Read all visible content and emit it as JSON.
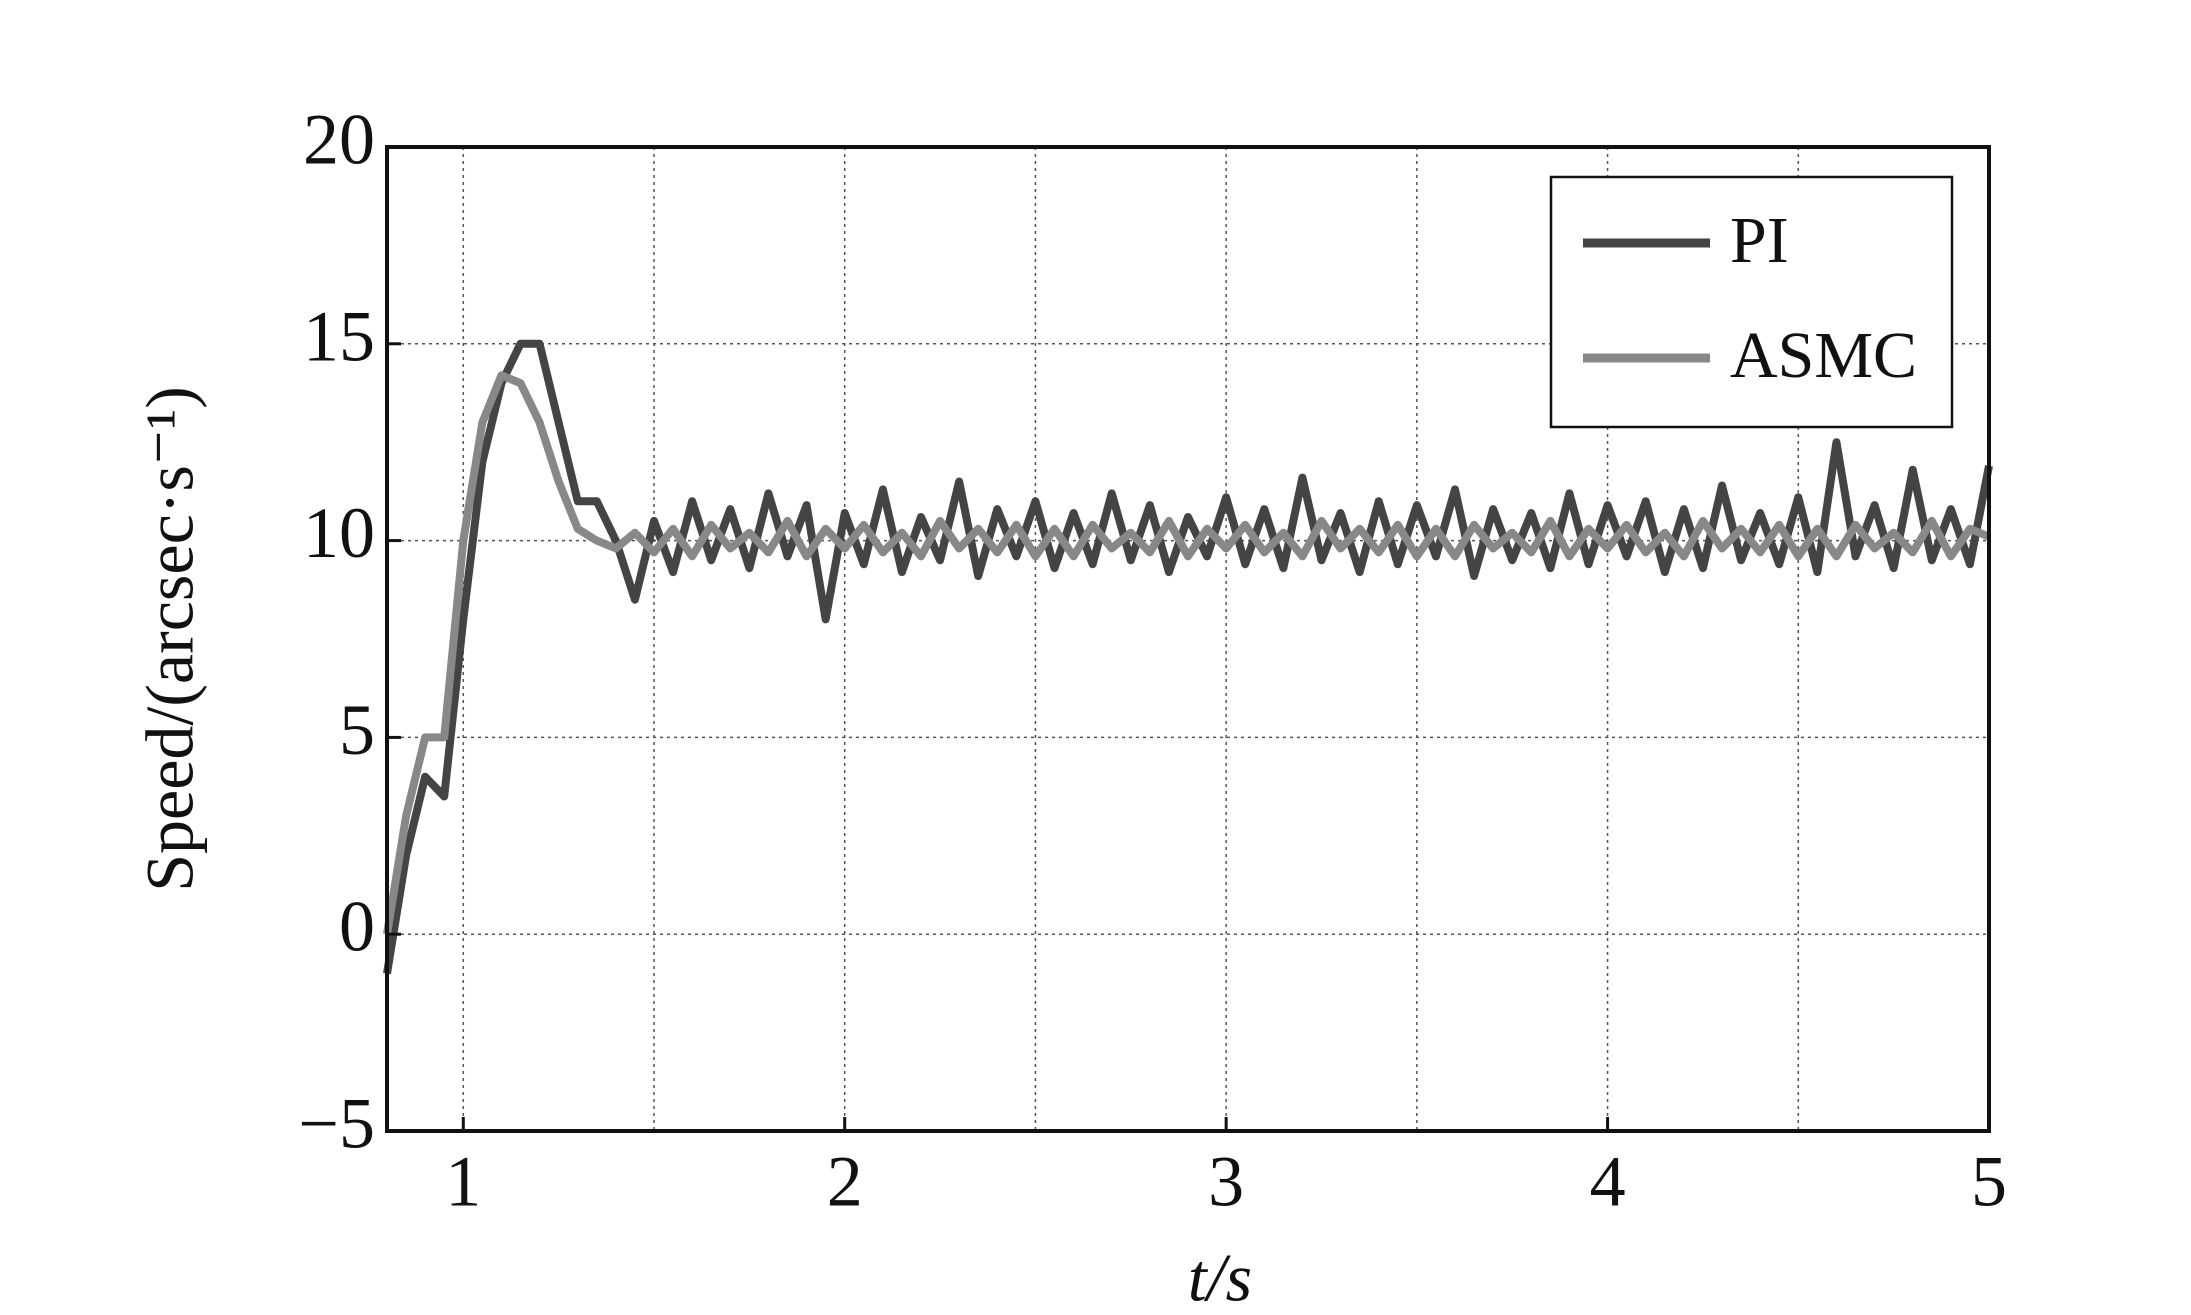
{
  "chart_data": {
    "type": "line",
    "xlabel": "t/s",
    "ylabel": "Speed/(arcsec·s⁻¹)",
    "xlim": [
      0.8,
      5
    ],
    "ylim": [
      -5,
      20
    ],
    "xticks": [
      1,
      2,
      3,
      4,
      5
    ],
    "x_gridlines": [
      1,
      1.5,
      2,
      2.5,
      3,
      3.5,
      4,
      4.5
    ],
    "yticks": [
      {
        "value": -5,
        "label": "−5"
      },
      0,
      5,
      10,
      15,
      20
    ],
    "grid": true,
    "legend": "upper right",
    "x": [
      0.8,
      0.85,
      0.9,
      0.95,
      1,
      1.05,
      1.1,
      1.15,
      1.2,
      1.25,
      1.3,
      1.35,
      1.4,
      1.45,
      1.5,
      1.55,
      1.6,
      1.65,
      1.7,
      1.75,
      1.8,
      1.85,
      1.9,
      1.95,
      2,
      2.05,
      2.1,
      2.15,
      2.2,
      2.25,
      2.3,
      2.35,
      2.4,
      2.45,
      2.5,
      2.55,
      2.6,
      2.65,
      2.7,
      2.75,
      2.8,
      2.85,
      2.9,
      2.95,
      3,
      3.05,
      3.1,
      3.15,
      3.2,
      3.25,
      3.3,
      3.35,
      3.4,
      3.45,
      3.5,
      3.55,
      3.6,
      3.65,
      3.7,
      3.75,
      3.8,
      3.85,
      3.9,
      3.95,
      4,
      4.05,
      4.1,
      4.15,
      4.2,
      4.25,
      4.3,
      4.35,
      4.4,
      4.45,
      4.5,
      4.55,
      4.6,
      4.65,
      4.7,
      4.75,
      4.8,
      4.85,
      4.9,
      4.95,
      5
    ],
    "series": [
      {
        "name": "PI",
        "color": "#444444",
        "values": [
          -1,
          2,
          4,
          3.5,
          8,
          12,
          14,
          15,
          15,
          13,
          11,
          11,
          10,
          8.5,
          10.5,
          9.2,
          11,
          9.5,
          10.8,
          9.3,
          11.2,
          9.6,
          10.9,
          8,
          10.7,
          9.4,
          11.3,
          9.2,
          10.6,
          9.5,
          11.5,
          9.1,
          10.8,
          9.6,
          11,
          9.3,
          10.7,
          9.4,
          11.2,
          9.5,
          10.9,
          9.2,
          10.6,
          9.6,
          11.1,
          9.4,
          10.8,
          9.3,
          11.6,
          9.5,
          10.7,
          9.2,
          11,
          9.4,
          10.9,
          9.6,
          11.3,
          9.1,
          10.8,
          9.5,
          10.7,
          9.3,
          11.2,
          9.4,
          10.9,
          9.6,
          11,
          9.2,
          10.8,
          9.3,
          11.4,
          9.5,
          10.7,
          9.4,
          11.1,
          9.2,
          12.5,
          9.6,
          10.9,
          9.3,
          11.8,
          9.5,
          10.8,
          9.4,
          11.9
        ]
      },
      {
        "name": "ASMC",
        "color": "#888888",
        "values": [
          0,
          3,
          5,
          5,
          10,
          13,
          14.2,
          14,
          13,
          11.5,
          10.3,
          10,
          9.8,
          10.2,
          9.7,
          10.3,
          9.6,
          10.4,
          9.8,
          10.2,
          9.7,
          10.5,
          9.6,
          10.3,
          9.8,
          10.4,
          9.7,
          10.2,
          9.6,
          10.5,
          9.8,
          10.3,
          9.7,
          10.4,
          9.6,
          10.3,
          9.6,
          10.4,
          9.8,
          10.2,
          9.7,
          10.5,
          9.6,
          10.3,
          9.8,
          10.4,
          9.7,
          10.2,
          9.6,
          10.5,
          9.8,
          10.3,
          9.7,
          10.4,
          9.6,
          10.3,
          9.6,
          10.4,
          9.8,
          10.2,
          9.7,
          10.5,
          9.6,
          10.3,
          9.8,
          10.4,
          9.7,
          10.2,
          9.6,
          10.5,
          9.8,
          10.3,
          9.7,
          10.4,
          9.6,
          10.3,
          9.6,
          10.4,
          9.8,
          10.2,
          9.7,
          10.5,
          9.6,
          10.3,
          10.1
        ]
      }
    ]
  }
}
